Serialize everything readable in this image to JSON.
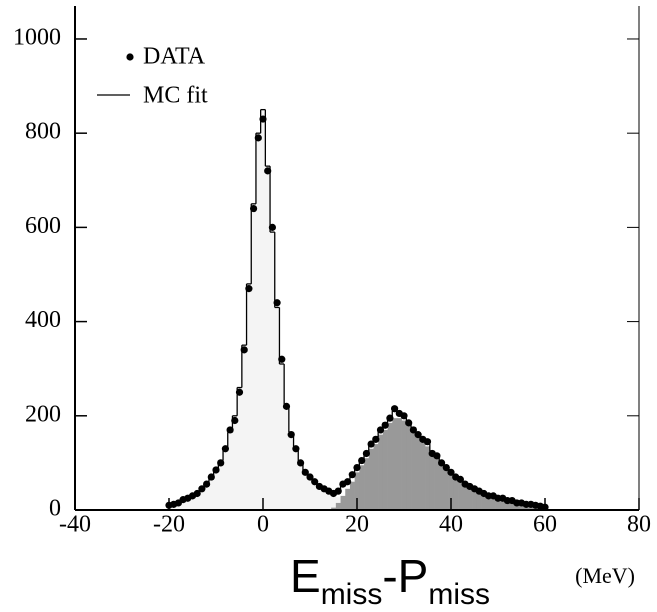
{
  "chart_data": {
    "type": "histogram",
    "x": [
      -20,
      -19,
      -18,
      -17,
      -16,
      -15,
      -14,
      -13,
      -12,
      -11,
      -10,
      -9,
      -8,
      -7,
      -6,
      -5,
      -4,
      -3,
      -2,
      -1,
      0,
      1,
      2,
      3,
      4,
      5,
      6,
      7,
      8,
      9,
      10,
      11,
      12,
      13,
      14,
      15,
      16,
      17,
      18,
      19,
      20,
      21,
      22,
      23,
      24,
      25,
      26,
      27,
      28,
      29,
      30,
      31,
      32,
      33,
      34,
      35,
      36,
      37,
      38,
      39,
      40,
      41,
      42,
      43,
      44,
      45,
      46,
      47,
      48,
      49,
      50,
      51,
      52,
      53,
      54,
      55,
      56,
      57,
      58,
      59,
      60
    ],
    "series": [
      {
        "color": "#f4f4f4",
        "values": [
          10,
          12,
          16,
          20,
          25,
          30,
          36,
          45,
          55,
          68,
          85,
          105,
          130,
          165,
          200,
          260,
          350,
          480,
          650,
          800,
          850,
          730,
          590,
          430,
          310,
          220,
          165,
          130,
          100,
          82,
          70,
          60,
          52,
          45,
          40,
          33,
          27,
          22,
          17,
          15,
          10,
          10,
          10,
          8,
          15,
          10,
          15,
          10,
          15,
          10,
          10,
          8,
          10,
          7,
          5,
          5,
          5,
          5,
          5,
          4,
          4,
          4,
          3,
          3,
          3,
          3,
          2,
          2,
          2,
          2,
          2,
          2,
          2,
          2,
          2,
          1,
          1,
          1,
          1,
          1,
          1
        ]
      },
      {
        "color": "#999999",
        "values": [
          0,
          0,
          0,
          0,
          0,
          0,
          0,
          0,
          0,
          0,
          0,
          0,
          0,
          0,
          0,
          0,
          0,
          0,
          0,
          0,
          0,
          0,
          0,
          0,
          0,
          0,
          0,
          0,
          0,
          0,
          0,
          0,
          0,
          0,
          0,
          5,
          15,
          30,
          45,
          60,
          80,
          95,
          110,
          130,
          140,
          160,
          170,
          185,
          195,
          195,
          190,
          180,
          165,
          155,
          145,
          135,
          120,
          110,
          95,
          85,
          75,
          68,
          60,
          52,
          47,
          42,
          37,
          33,
          28,
          26,
          23,
          21,
          18,
          16,
          14,
          12,
          10,
          9,
          8,
          6,
          5
        ]
      },
      {
        "name": "MC fit",
        "color": "#000000",
        "values": [
          10,
          12,
          16,
          20,
          25,
          30,
          36,
          45,
          55,
          68,
          85,
          105,
          130,
          165,
          200,
          260,
          350,
          480,
          650,
          800,
          850,
          730,
          590,
          430,
          310,
          220,
          165,
          130,
          100,
          82,
          70,
          60,
          52,
          45,
          40,
          38,
          42,
          52,
          62,
          75,
          90,
          105,
          120,
          138,
          155,
          170,
          185,
          195,
          210,
          205,
          200,
          188,
          175,
          162,
          150,
          140,
          125,
          115,
          102,
          90,
          80,
          72,
          65,
          57,
          50,
          45,
          40,
          35,
          31,
          28,
          25,
          23,
          20,
          18,
          16,
          14,
          12,
          11,
          9,
          8,
          6
        ]
      },
      {
        "name": "DATA",
        "color": "#000000",
        "values": [
          10,
          12,
          15,
          22,
          25,
          30,
          35,
          45,
          55,
          70,
          85,
          100,
          130,
          170,
          190,
          250,
          340,
          470,
          640,
          790,
          830,
          720,
          600,
          440,
          320,
          220,
          160,
          130,
          100,
          80,
          70,
          60,
          50,
          45,
          40,
          35,
          40,
          55,
          60,
          75,
          90,
          105,
          120,
          140,
          150,
          170,
          180,
          195,
          215,
          205,
          200,
          185,
          170,
          160,
          150,
          145,
          120,
          115,
          100,
          90,
          80,
          70,
          65,
          55,
          50,
          45,
          40,
          35,
          30,
          30,
          25,
          25,
          20,
          20,
          15,
          15,
          12,
          12,
          10,
          8,
          6
        ]
      }
    ],
    "xlim": [
      -40,
      80
    ],
    "xticks": [
      -40,
      -20,
      0,
      20,
      40,
      60,
      80
    ],
    "ylim": [
      0,
      1070
    ],
    "yticks": [
      0,
      200,
      400,
      600,
      800,
      1000
    ],
    "xlabel": [
      "E",
      "miss",
      "-P",
      "miss"
    ],
    "xunit": "(MeV)",
    "legend": "top-left"
  }
}
